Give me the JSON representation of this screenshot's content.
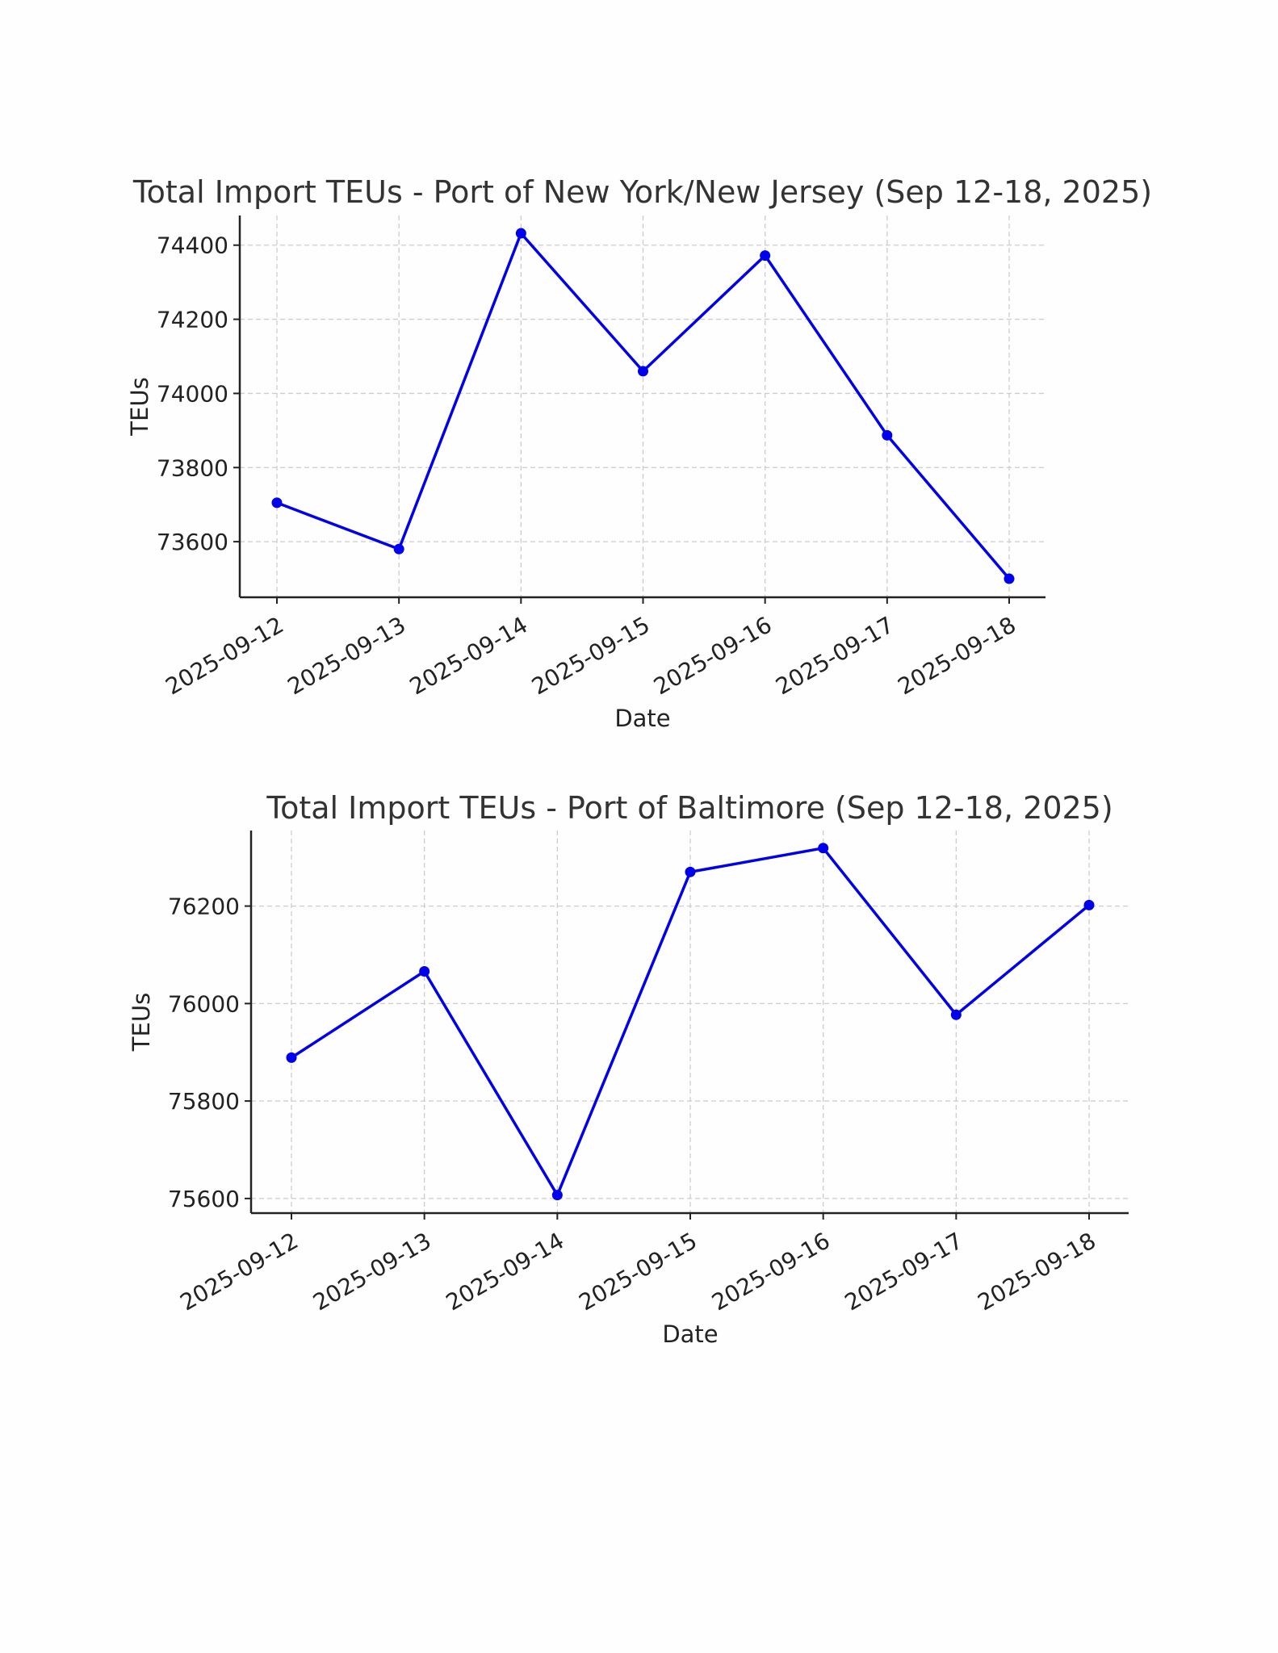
{
  "chart_data": [
    {
      "type": "line",
      "title": "Total Import TEUs - Port of New York/New Jersey (Sep 12-18, 2025)",
      "xlabel": "Date",
      "ylabel": "TEUs",
      "categories": [
        "2025-09-12",
        "2025-09-13",
        "2025-09-14",
        "2025-09-15",
        "2025-09-16",
        "2025-09-17",
        "2025-09-18"
      ],
      "series": [
        {
          "values": [
            73705,
            73580,
            74432,
            74060,
            74372,
            73887,
            73500
          ]
        }
      ],
      "yticks": [
        73600,
        73800,
        74000,
        74200,
        74400
      ],
      "ylim": [
        73450,
        74480
      ],
      "grid": true,
      "color": "#0000ee"
    },
    {
      "type": "line",
      "title": "Total Import TEUs - Port of Baltimore (Sep 12-18, 2025)",
      "xlabel": "Date",
      "ylabel": "TEUs",
      "categories": [
        "2025-09-12",
        "2025-09-13",
        "2025-09-14",
        "2025-09-15",
        "2025-09-16",
        "2025-09-17",
        "2025-09-18"
      ],
      "series": [
        {
          "values": [
            75889,
            76066,
            75607,
            76270,
            76319,
            75977,
            76202
          ]
        }
      ],
      "yticks": [
        75600,
        75800,
        76000,
        76200
      ],
      "ylim": [
        75570,
        76355
      ],
      "grid": true,
      "color": "#0000ee"
    }
  ]
}
